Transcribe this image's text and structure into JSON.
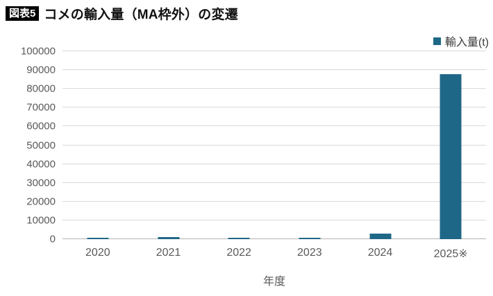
{
  "title": {
    "badge": "図表5",
    "text": "コメの輸入量（MA枠外）の変遷"
  },
  "legend": {
    "label": "輸入量(t)",
    "color": "#1f6787"
  },
  "chart_data": {
    "type": "bar",
    "title": "コメの輸入量（MA枠外）の変遷",
    "categories": [
      "2020",
      "2021",
      "2022",
      "2023",
      "2024",
      "2025※"
    ],
    "values": [
      700,
      1000,
      800,
      600,
      3000,
      88000
    ],
    "series_name": "輸入量(t)",
    "xlabel": "年度",
    "ylabel": "",
    "ylim": [
      0,
      100000
    ],
    "ytick_step": 10000,
    "grid": true,
    "legend_position": "top-right",
    "bar_color": "#1f6787"
  },
  "colors": {
    "bar": "#1f6787",
    "gridline": "#d9d9d9",
    "baseline": "#b3b3b3",
    "axis_text": "#595959",
    "badge_bg": "#000000",
    "badge_text": "#ffffff"
  }
}
